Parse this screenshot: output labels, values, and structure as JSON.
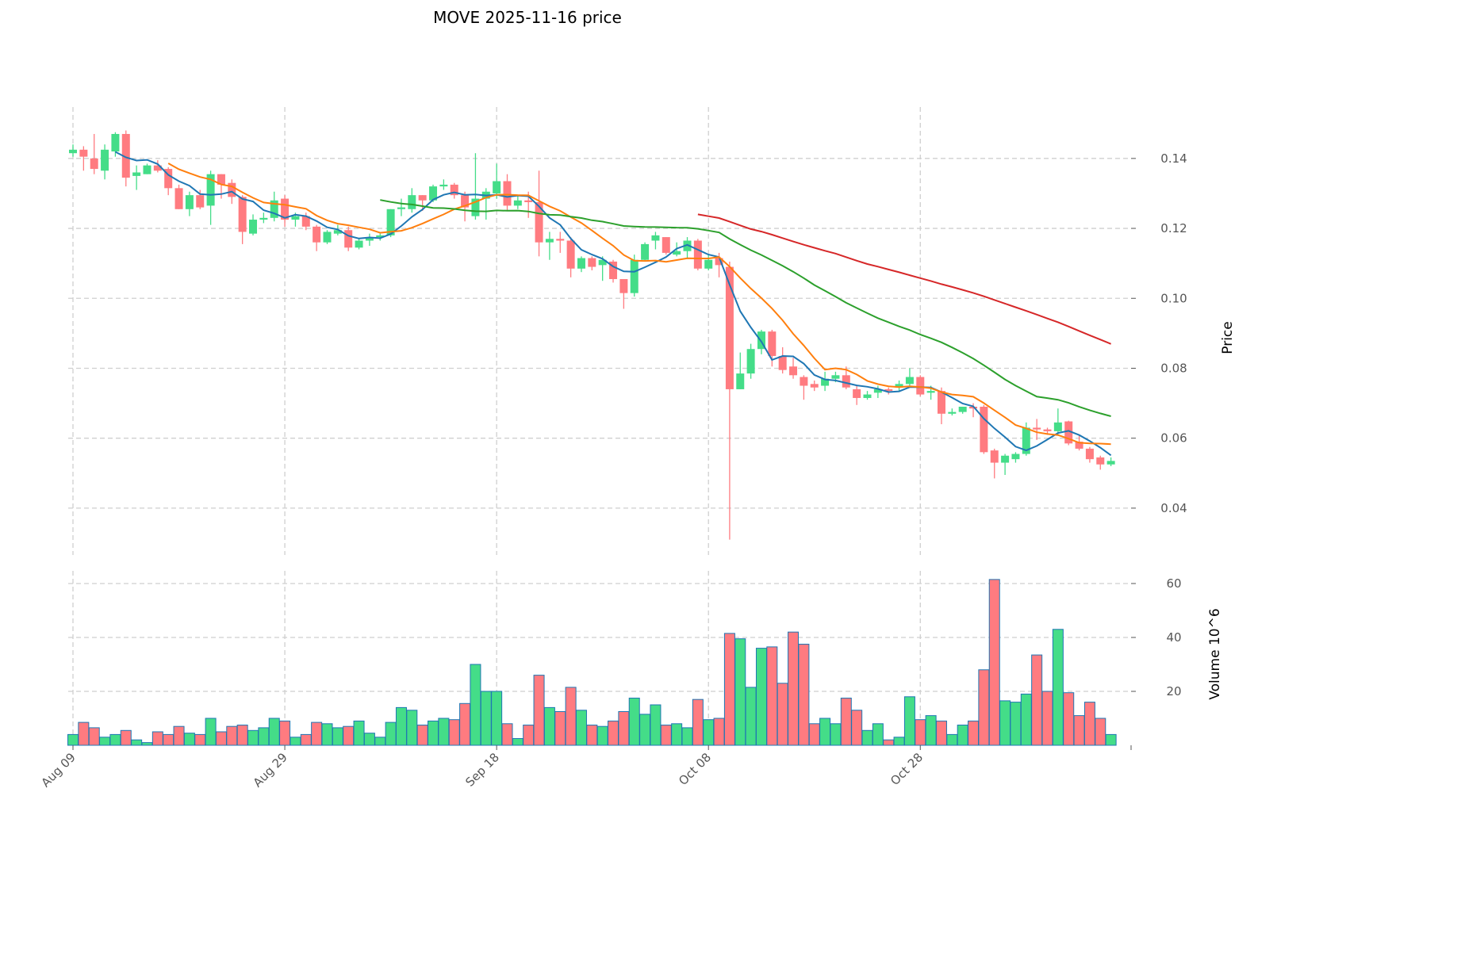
{
  "chart_data": {
    "type": "candlestick",
    "title": "MOVE  2025-11-16  price",
    "ylabel": "Price",
    "volume_ylabel": "Volume  10^6",
    "x_tick_labels": [
      "Aug 09",
      "Aug 29",
      "Sep 18",
      "Oct 08",
      "Oct 28"
    ],
    "x_tick_index": [
      0,
      20,
      40,
      60,
      80
    ],
    "start_date": "2025-08-09",
    "y_ticks": [
      "0.04",
      "0.06",
      "0.08",
      "0.10",
      "0.12",
      "0.14"
    ],
    "y_tick_values": [
      0.04,
      0.06,
      0.08,
      0.1,
      0.12,
      0.14
    ],
    "ylim": [
      0.0266,
      0.1547
    ],
    "volume_ticks": [
      "20",
      "40",
      "60"
    ],
    "volume_tick_values": [
      20,
      40,
      60
    ],
    "volume_ylim": [
      0,
      64.7
    ],
    "moving_averages": [
      {
        "period": 5,
        "color": "#1f77b4"
      },
      {
        "period": 10,
        "color": "#ff7f0e"
      },
      {
        "period": 30,
        "color": "#2ca02c"
      },
      {
        "period": 60,
        "color": "#d62728"
      }
    ],
    "up_color": "#44dd88",
    "down_color": "#ff7b80",
    "volume_edge_color": "#1f77b4",
    "open": [
      0.1415,
      0.1425,
      0.14,
      0.1365,
      0.142,
      0.147,
      0.135,
      0.1355,
      0.138,
      0.137,
      0.1315,
      0.1255,
      0.1295,
      0.1265,
      0.1355,
      0.133,
      0.129,
      0.1185,
      0.1225,
      0.123,
      0.1285,
      0.1225,
      0.1235,
      0.1205,
      0.116,
      0.1185,
      0.1195,
      0.1145,
      0.1165,
      0.1175,
      0.118,
      0.1255,
      0.1255,
      0.1295,
      0.128,
      0.132,
      0.1325,
      0.1295,
      0.1235,
      0.1285,
      0.13,
      0.1335,
      0.1265,
      0.128,
      0.1275,
      0.116,
      0.117,
      0.1165,
      0.1085,
      0.1115,
      0.1095,
      0.1105,
      0.1055,
      0.1015,
      0.111,
      0.1165,
      0.1175,
      0.1125,
      0.1135,
      0.1165,
      0.1085,
      0.1115,
      0.109,
      0.074,
      0.0785,
      0.0855,
      0.0905,
      0.0835,
      0.0805,
      0.0775,
      0.0755,
      0.075,
      0.077,
      0.078,
      0.074,
      0.0715,
      0.073,
      0.074,
      0.0745,
      0.0755,
      0.0775,
      0.073,
      0.0735,
      0.067,
      0.0675,
      0.069,
      0.069,
      0.0565,
      0.053,
      0.054,
      0.0555,
      0.063,
      0.0625,
      0.062,
      0.0648,
      0.059,
      0.057,
      0.0545,
      0.0525
    ],
    "high": [
      0.144,
      0.1435,
      0.147,
      0.144,
      0.1475,
      0.148,
      0.138,
      0.1385,
      0.1395,
      0.1375,
      0.1325,
      0.1305,
      0.131,
      0.1365,
      0.1355,
      0.134,
      0.1295,
      0.124,
      0.1245,
      0.1305,
      0.1295,
      0.1245,
      0.1245,
      0.121,
      0.1195,
      0.121,
      0.1205,
      0.117,
      0.1185,
      0.1185,
      0.1255,
      0.1285,
      0.1315,
      0.1295,
      0.1325,
      0.134,
      0.133,
      0.1305,
      0.1415,
      0.1315,
      0.1385,
      0.1355,
      0.1295,
      0.1305,
      0.1365,
      0.119,
      0.119,
      0.1175,
      0.112,
      0.112,
      0.112,
      0.111,
      0.1055,
      0.1125,
      0.116,
      0.119,
      0.1175,
      0.116,
      0.1175,
      0.117,
      0.1125,
      0.113,
      0.1105,
      0.0845,
      0.087,
      0.091,
      0.091,
      0.086,
      0.083,
      0.078,
      0.0765,
      0.079,
      0.079,
      0.0805,
      0.075,
      0.0735,
      0.075,
      0.0745,
      0.0765,
      0.08,
      0.078,
      0.075,
      0.0745,
      0.0685,
      0.069,
      0.07,
      0.0695,
      0.057,
      0.0555,
      0.056,
      0.0645,
      0.0655,
      0.063,
      0.0685,
      0.065,
      0.061,
      0.0575,
      0.055,
      0.0545
    ],
    "low": [
      0.1405,
      0.1365,
      0.1355,
      0.134,
      0.1405,
      0.132,
      0.131,
      0.1355,
      0.136,
      0.1295,
      0.1255,
      0.1235,
      0.1255,
      0.121,
      0.1285,
      0.127,
      0.1155,
      0.118,
      0.1215,
      0.122,
      0.1205,
      0.1205,
      0.1195,
      0.1135,
      0.1155,
      0.118,
      0.1135,
      0.114,
      0.115,
      0.1165,
      0.1175,
      0.1235,
      0.1245,
      0.125,
      0.1275,
      0.131,
      0.1285,
      0.122,
      0.1225,
      0.1225,
      0.1285,
      0.125,
      0.1255,
      0.123,
      0.112,
      0.111,
      0.113,
      0.106,
      0.1075,
      0.108,
      0.105,
      0.1045,
      0.097,
      0.1005,
      0.1105,
      0.114,
      0.1125,
      0.112,
      0.1115,
      0.108,
      0.108,
      0.106,
      0.031,
      0.074,
      0.077,
      0.084,
      0.0805,
      0.0785,
      0.077,
      0.071,
      0.0735,
      0.0735,
      0.076,
      0.074,
      0.0695,
      0.071,
      0.0715,
      0.0725,
      0.0735,
      0.0745,
      0.072,
      0.071,
      0.064,
      0.0665,
      0.067,
      0.066,
      0.0555,
      0.0485,
      0.0495,
      0.053,
      0.055,
      0.0595,
      0.061,
      0.061,
      0.058,
      0.0565,
      0.053,
      0.051,
      0.052
    ],
    "close": [
      0.1425,
      0.1405,
      0.137,
      0.1425,
      0.147,
      0.1345,
      0.136,
      0.138,
      0.1365,
      0.1315,
      0.1255,
      0.1295,
      0.126,
      0.1355,
      0.1325,
      0.129,
      0.119,
      0.1225,
      0.123,
      0.128,
      0.1225,
      0.1235,
      0.1205,
      0.116,
      0.119,
      0.1195,
      0.1145,
      0.1165,
      0.1175,
      0.118,
      0.1255,
      0.126,
      0.1295,
      0.128,
      0.132,
      0.1325,
      0.1295,
      0.126,
      0.1285,
      0.1305,
      0.1335,
      0.1265,
      0.128,
      0.1275,
      0.116,
      0.117,
      0.1165,
      0.1085,
      0.1115,
      0.109,
      0.111,
      0.1055,
      0.1015,
      0.111,
      0.1155,
      0.118,
      0.113,
      0.1135,
      0.1165,
      0.1085,
      0.111,
      0.1095,
      0.074,
      0.0785,
      0.0855,
      0.0905,
      0.0835,
      0.0795,
      0.078,
      0.075,
      0.0745,
      0.077,
      0.078,
      0.0745,
      0.0715,
      0.0725,
      0.074,
      0.0735,
      0.0755,
      0.0775,
      0.0725,
      0.0735,
      0.067,
      0.0675,
      0.069,
      0.0685,
      0.056,
      0.053,
      0.055,
      0.0555,
      0.063,
      0.0625,
      0.062,
      0.0645,
      0.0585,
      0.057,
      0.054,
      0.0525,
      0.0535
    ],
    "volume": [
      4,
      8.5,
      6.5,
      3,
      4,
      5.5,
      2,
      1,
      5,
      4,
      7,
      4.5,
      4,
      10,
      5,
      7,
      7.5,
      5.5,
      6.5,
      10,
      9,
      3,
      4,
      8.5,
      8,
      6.5,
      7,
      9,
      4.5,
      3,
      8.5,
      14,
      13,
      7.5,
      9,
      10,
      9.5,
      15.5,
      30,
      20,
      20,
      8,
      2.5,
      7.5,
      26,
      14,
      12.5,
      21.5,
      13,
      7.5,
      7,
      9,
      12.5,
      17.5,
      11.5,
      15,
      7.5,
      8,
      6.5,
      17,
      9.5,
      10,
      41.5,
      39.5,
      21.5,
      36,
      36.5,
      23,
      42,
      37.5,
      8,
      10,
      8,
      17.5,
      13,
      5.5,
      8,
      2,
      3,
      18,
      9.5,
      11,
      9,
      4,
      7.5,
      9,
      28,
      61.5,
      16.5,
      16,
      19,
      33.5,
      20,
      43,
      19.5,
      11,
      16,
      10,
      4
    ]
  }
}
